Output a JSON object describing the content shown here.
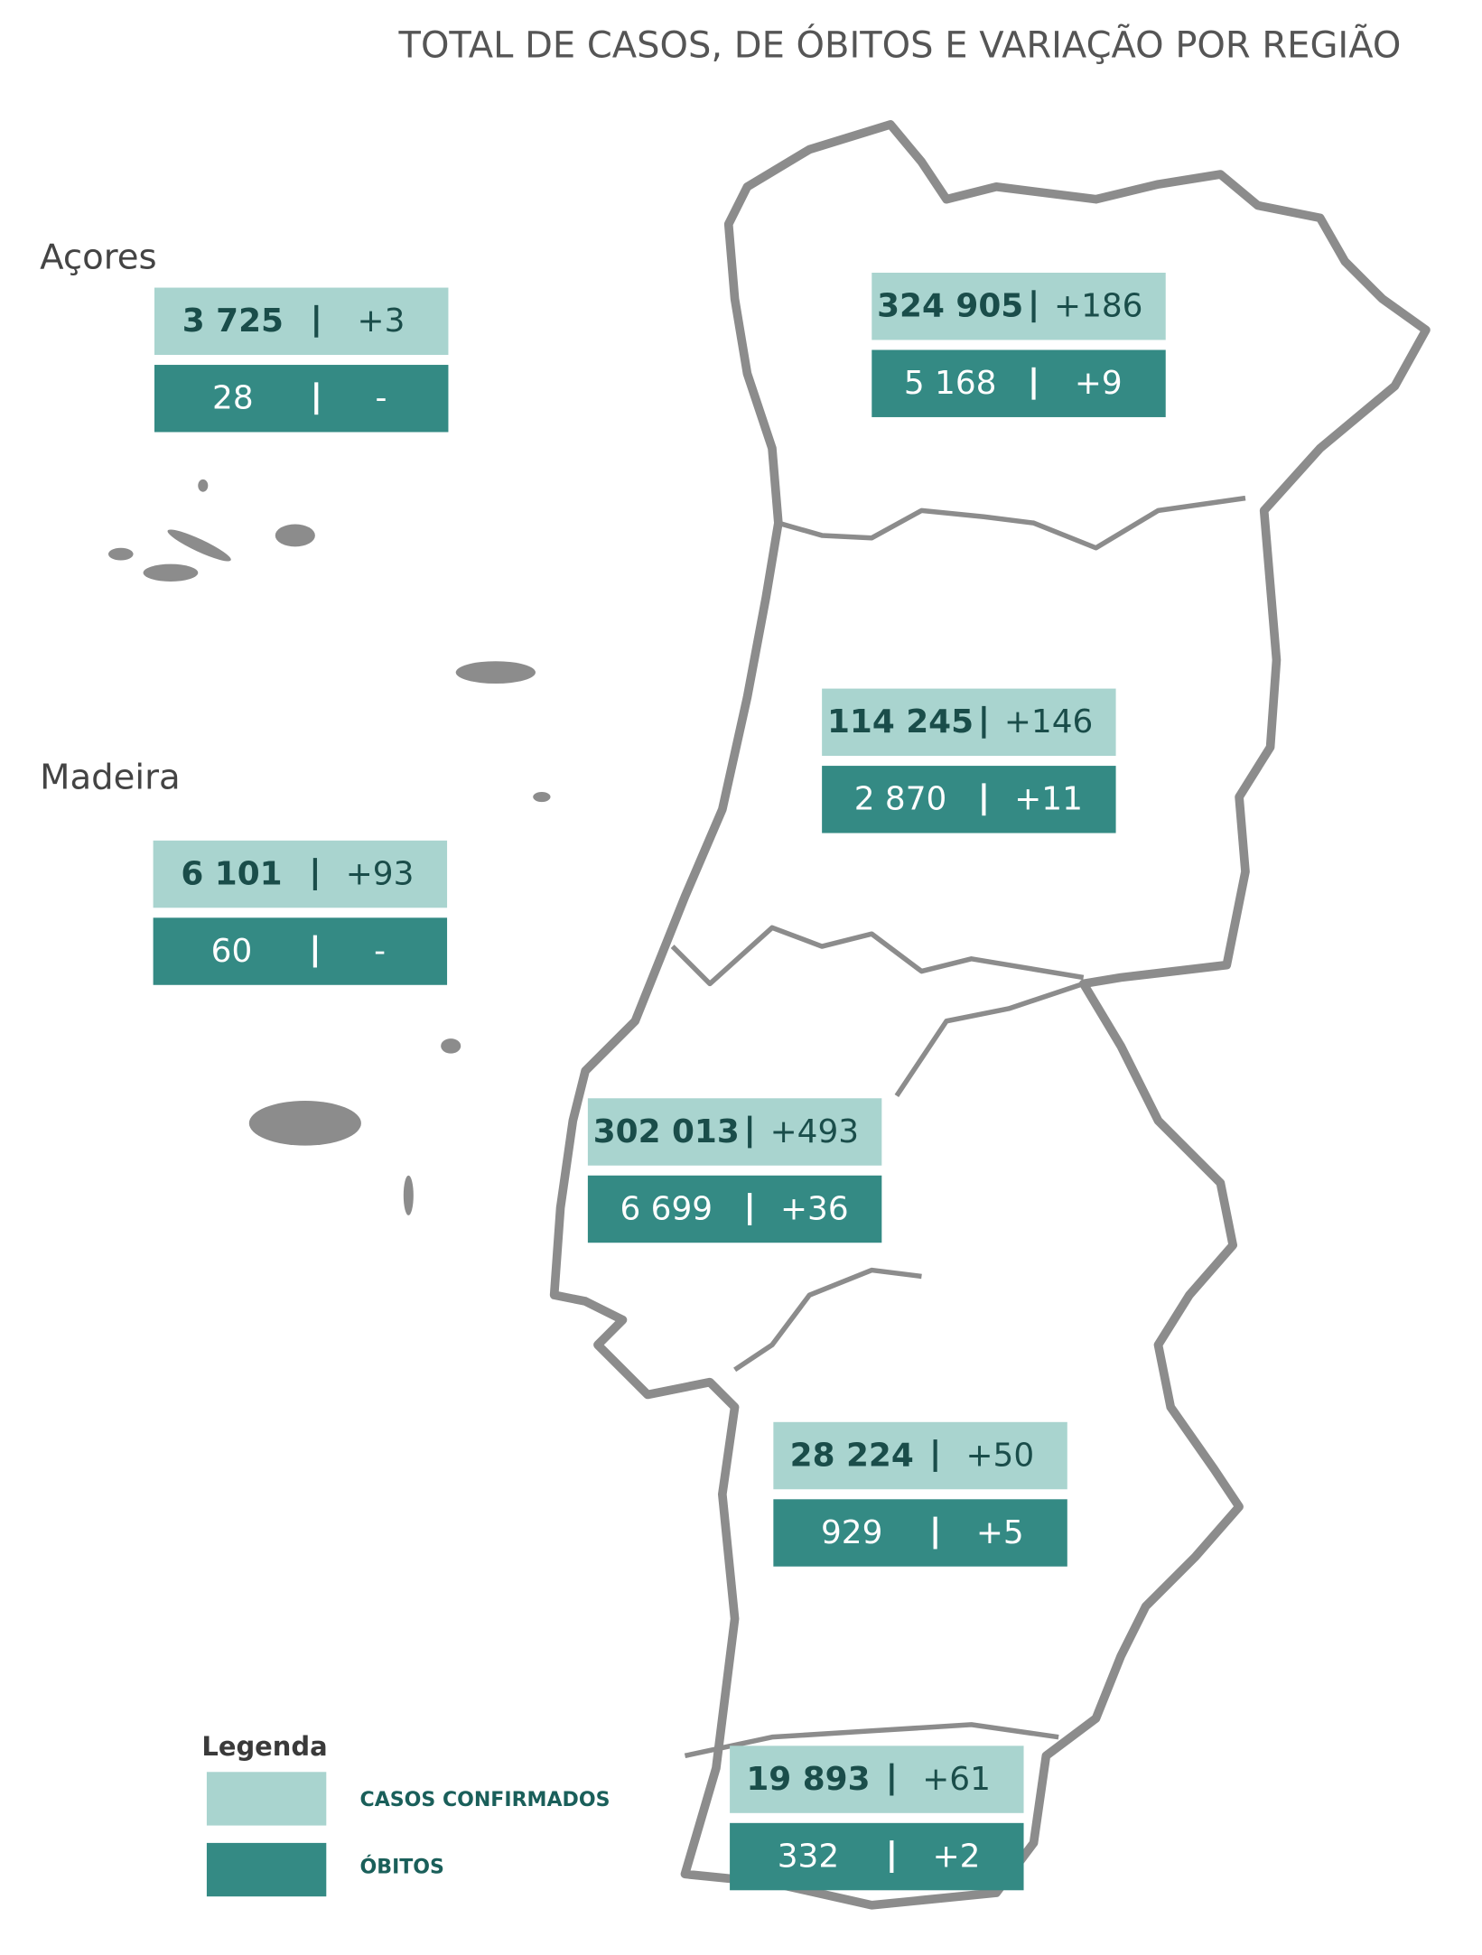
{
  "title": "TOTAL DE CASOS, DE ÓBITOS E VARIAÇÃO POR REGIÃO",
  "regions": [
    {
      "label": "Açores",
      "cases": "3 725",
      "cases_change": "+3",
      "deaths": "28",
      "deaths_change": "-"
    },
    {
      "cases": "324 905",
      "cases_change": "+186",
      "deaths": "5 168",
      "deaths_change": "+9"
    },
    {
      "cases": "114 245",
      "cases_change": "+146",
      "deaths": "2 870",
      "deaths_change": "+11"
    },
    {
      "label": "Madeira",
      "cases": "6 101",
      "cases_change": "+93",
      "deaths": "60",
      "deaths_change": "-"
    },
    {
      "cases": "302 013",
      "cases_change": "+493",
      "deaths": "6 699",
      "deaths_change": "+36"
    },
    {
      "cases": "28 224",
      "cases_change": "+50",
      "deaths": "929",
      "deaths_change": "+5"
    },
    {
      "cases": "19 893",
      "cases_change": "+61",
      "deaths": "332",
      "deaths_change": "+2"
    }
  ],
  "legend": {
    "title": "Legenda",
    "items": [
      "CASOS CONFIRMADOS",
      "ÓBITOS"
    ]
  }
}
